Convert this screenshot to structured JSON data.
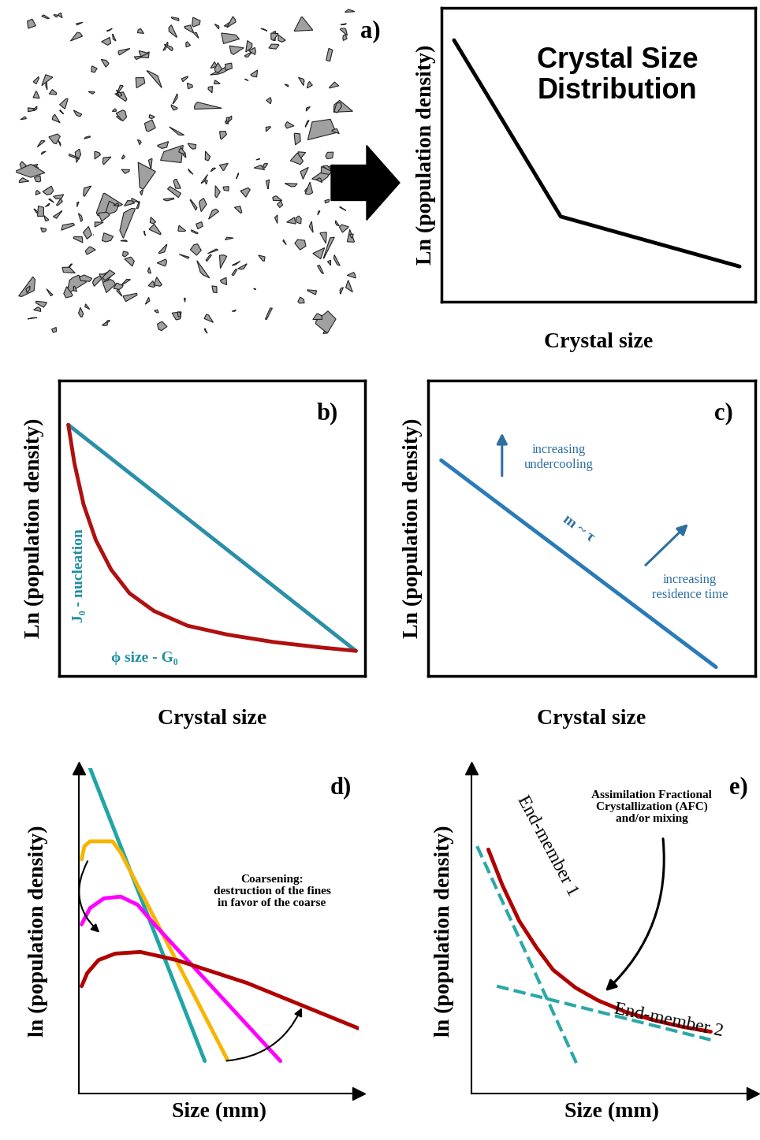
{
  "chart_data": [
    {
      "panel": "a)",
      "type": "line",
      "title": "Crystal Size\nDistribution",
      "x_label": "Crystal size",
      "y_label": "Ln (population density)",
      "xlim": [
        0,
        1
      ],
      "ylim": [
        0,
        1
      ],
      "xticks": [],
      "yticks": [],
      "tick_labels": false,
      "series": [
        {
          "color": "#000000",
          "x": [
            0.04,
            0.38,
            0.95
          ],
          "values": [
            0.89,
            0.29,
            0.12
          ]
        }
      ],
      "annotations": []
    },
    {
      "panel": "b)",
      "type": "line",
      "x_label": "Crystal size",
      "y_label": "Ln (population density)",
      "xlim": [
        0,
        1
      ],
      "ylim": [
        0,
        1
      ],
      "xticks": [],
      "yticks": [],
      "tick_labels": false,
      "series": [
        {
          "color": "#2a8fa8",
          "x": [
            0.03,
            0.97
          ],
          "values": [
            0.85,
            0.085
          ]
        },
        {
          "color": "#b01010",
          "x": [
            0.03,
            0.05,
            0.08,
            0.12,
            0.17,
            0.23,
            0.31,
            0.42,
            0.55,
            0.7,
            0.85,
            0.97
          ],
          "values": [
            0.85,
            0.72,
            0.58,
            0.46,
            0.36,
            0.28,
            0.22,
            0.17,
            0.14,
            0.115,
            0.097,
            0.085
          ]
        }
      ],
      "annotations": [
        "J₀ - nucleation",
        "ϕ size - G₀"
      ]
    },
    {
      "panel": "c)",
      "type": "line",
      "x_label": "Crystal size",
      "y_label": "Ln (population density)",
      "xlim": [
        0,
        1
      ],
      "ylim": [
        0,
        1
      ],
      "xticks": [],
      "yticks": [],
      "tick_labels": false,
      "series": [
        {
          "color": "#2a7ab8",
          "x": [
            0.04,
            0.88
          ],
          "values": [
            0.73,
            0.03
          ]
        }
      ],
      "annotations": [
        "increasing\nundercooling",
        "m ~ τ",
        "increasing\nresidence time"
      ]
    },
    {
      "panel": "d)",
      "type": "line",
      "x_label": "Size (mm)",
      "y_label": "ln (population density)",
      "xlim": [
        0,
        1
      ],
      "ylim": [
        0,
        1
      ],
      "xticks": [],
      "yticks": [],
      "tick_labels": false,
      "series": [
        {
          "color": "#1fa5a8",
          "x": [
            0.04,
            0.45
          ],
          "values": [
            1.0,
            0.1
          ]
        },
        {
          "color": "#f7b500",
          "x": [
            0.01,
            0.02,
            0.04,
            0.12,
            0.15,
            0.53
          ],
          "values": [
            0.72,
            0.76,
            0.775,
            0.775,
            0.74,
            0.105
          ]
        },
        {
          "color": "#ff00ff",
          "x": [
            0.01,
            0.04,
            0.09,
            0.15,
            0.21,
            0.27,
            0.72
          ],
          "values": [
            0.52,
            0.57,
            0.6,
            0.605,
            0.58,
            0.52,
            0.1
          ]
        },
        {
          "color": "#b00000",
          "x": [
            0.01,
            0.03,
            0.07,
            0.13,
            0.22,
            0.35,
            0.6,
            1.0
          ],
          "values": [
            0.33,
            0.37,
            0.41,
            0.43,
            0.435,
            0.41,
            0.34,
            0.2
          ]
        }
      ],
      "annotations": [
        "Coarsening:\ndestruction of the fines\nin favor of the coarse"
      ]
    },
    {
      "panel": "e)",
      "type": "line",
      "x_label": "Size (mm)",
      "y_label": "ln (population density)",
      "xlim": [
        0,
        1
      ],
      "ylim": [
        0,
        1
      ],
      "xticks": [],
      "yticks": [],
      "tick_labels": false,
      "series": [
        {
          "color": "#b00000",
          "line_style": "solid",
          "x": [
            0.06,
            0.11,
            0.17,
            0.23,
            0.29,
            0.37,
            0.45,
            0.55,
            0.65,
            0.75,
            0.85
          ],
          "values": [
            0.75,
            0.64,
            0.53,
            0.45,
            0.38,
            0.325,
            0.286,
            0.25,
            0.225,
            0.205,
            0.19
          ]
        },
        {
          "color": "#2aa8a8",
          "line_style": "dashed",
          "x": [
            0.02,
            0.38
          ],
          "values": [
            0.76,
            0.08
          ]
        },
        {
          "color": "#2aa8a8",
          "line_style": "dashed",
          "x": [
            0.09,
            0.85
          ],
          "values": [
            0.33,
            0.165
          ]
        }
      ],
      "annotations": [
        "End-member 1",
        "End-member 2",
        "Assimilation Fractional\nCrystallization (AFC)\nand/or mixing"
      ]
    }
  ]
}
